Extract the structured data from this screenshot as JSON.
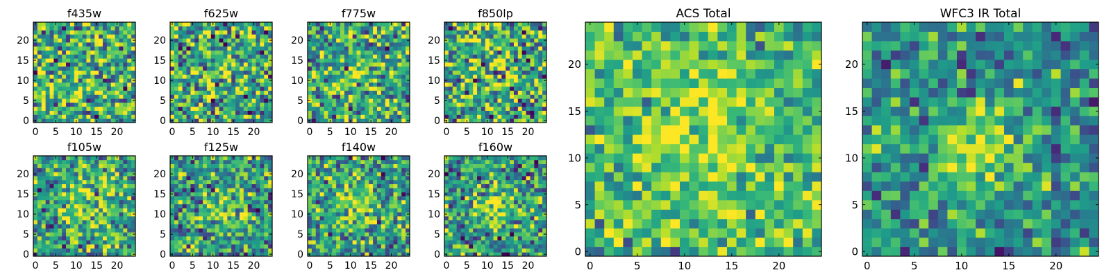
{
  "figure": {
    "background": "#ffffff",
    "colormap": {
      "name": "viridis",
      "stops": [
        "#440154",
        "#482878",
        "#3e4989",
        "#31688e",
        "#26828e",
        "#1f9e89",
        "#35b779",
        "#6ece58",
        "#b5de2b",
        "#fde725"
      ]
    }
  },
  "chart_data": [
    {
      "type": "heatmap",
      "title": "f435w",
      "grid": [
        25,
        25
      ],
      "xticks": [
        "0",
        "5",
        "10",
        "15",
        "20"
      ],
      "yticks": [
        "0",
        "5",
        "10",
        "15",
        "20"
      ],
      "xlim": [
        -0.5,
        24.5
      ],
      "ylim": [
        -0.5,
        24.5
      ],
      "value_range": [
        0,
        1
      ],
      "source": {
        "kind": "noise",
        "seed": 11,
        "noise": 0.55,
        "peak_x": 12,
        "peak_y": 12,
        "peak_amp": 0.05,
        "sigma": 4,
        "base": 0.62
      }
    },
    {
      "type": "heatmap",
      "title": "f625w",
      "grid": [
        25,
        25
      ],
      "xticks": [
        "0",
        "5",
        "10",
        "15",
        "20"
      ],
      "yticks": [
        "0",
        "5",
        "10",
        "15",
        "20"
      ],
      "xlim": [
        -0.5,
        24.5
      ],
      "ylim": [
        -0.5,
        24.5
      ],
      "value_range": [
        0,
        1
      ],
      "source": {
        "kind": "noise",
        "seed": 23,
        "noise": 0.55,
        "peak_x": 12,
        "peak_y": 13,
        "peak_amp": 0.1,
        "sigma": 3,
        "base": 0.6
      }
    },
    {
      "type": "heatmap",
      "title": "f775w",
      "grid": [
        25,
        25
      ],
      "xticks": [
        "0",
        "5",
        "10",
        "15",
        "20"
      ],
      "yticks": [
        "0",
        "5",
        "10",
        "15",
        "20"
      ],
      "xlim": [
        -0.5,
        24.5
      ],
      "ylim": [
        -0.5,
        24.5
      ],
      "value_range": [
        0,
        1
      ],
      "source": {
        "kind": "noise",
        "seed": 37,
        "noise": 0.5,
        "peak_x": 12,
        "peak_y": 12,
        "peak_amp": 0.15,
        "sigma": 3,
        "base": 0.6
      }
    },
    {
      "type": "heatmap",
      "title": "f850lp",
      "grid": [
        25,
        25
      ],
      "xticks": [
        "0",
        "5",
        "10",
        "15",
        "20"
      ],
      "yticks": [
        "0",
        "5",
        "10",
        "15",
        "20"
      ],
      "xlim": [
        -0.5,
        24.5
      ],
      "ylim": [
        -0.5,
        24.5
      ],
      "value_range": [
        0,
        1
      ],
      "source": {
        "kind": "noise",
        "seed": 41,
        "noise": 0.55,
        "peak_x": 12,
        "peak_y": 12,
        "peak_amp": 0.12,
        "sigma": 3,
        "base": 0.6
      }
    },
    {
      "type": "heatmap",
      "title": "f105w",
      "grid": [
        25,
        25
      ],
      "xticks": [
        "0",
        "5",
        "10",
        "15",
        "20"
      ],
      "yticks": [
        "0",
        "5",
        "10",
        "15",
        "20"
      ],
      "xlim": [
        -0.5,
        24.5
      ],
      "ylim": [
        -0.5,
        24.5
      ],
      "value_range": [
        0,
        1
      ],
      "source": {
        "kind": "noise",
        "seed": 53,
        "noise": 0.45,
        "peak_x": 12,
        "peak_y": 12,
        "peak_amp": 0.25,
        "sigma": 4,
        "base": 0.58
      }
    },
    {
      "type": "heatmap",
      "title": "f125w",
      "grid": [
        25,
        25
      ],
      "xticks": [
        "0",
        "5",
        "10",
        "15",
        "20"
      ],
      "yticks": [
        "0",
        "5",
        "10",
        "15",
        "20"
      ],
      "xlim": [
        -0.5,
        24.5
      ],
      "ylim": [
        -0.5,
        24.5
      ],
      "value_range": [
        0,
        1
      ],
      "source": {
        "kind": "noise",
        "seed": 67,
        "noise": 0.45,
        "peak_x": 12,
        "peak_y": 12,
        "peak_amp": 0.3,
        "sigma": 3,
        "base": 0.56
      }
    },
    {
      "type": "heatmap",
      "title": "f140w",
      "grid": [
        25,
        25
      ],
      "xticks": [
        "0",
        "5",
        "10",
        "15",
        "20"
      ],
      "yticks": [
        "0",
        "5",
        "10",
        "15",
        "20"
      ],
      "xlim": [
        -0.5,
        24.5
      ],
      "ylim": [
        -0.5,
        24.5
      ],
      "value_range": [
        0,
        1
      ],
      "source": {
        "kind": "noise",
        "seed": 79,
        "noise": 0.45,
        "peak_x": 11,
        "peak_y": 12,
        "peak_amp": 0.25,
        "sigma": 3.5,
        "base": 0.56
      }
    },
    {
      "type": "heatmap",
      "title": "f160w",
      "grid": [
        25,
        25
      ],
      "xticks": [
        "0",
        "5",
        "10",
        "15",
        "20"
      ],
      "yticks": [
        "0",
        "5",
        "10",
        "15",
        "20"
      ],
      "xlim": [
        -0.5,
        24.5
      ],
      "ylim": [
        -0.5,
        24.5
      ],
      "value_range": [
        0,
        1
      ],
      "source": {
        "kind": "noise",
        "seed": 83,
        "noise": 0.45,
        "peak_x": 12,
        "peak_y": 12,
        "peak_amp": 0.35,
        "sigma": 3,
        "base": 0.55
      }
    },
    {
      "type": "heatmap",
      "title": "ACS Total",
      "grid": [
        25,
        25
      ],
      "xticks": [
        "0",
        "5",
        "10",
        "15",
        "20"
      ],
      "yticks": [
        "0",
        "5",
        "10",
        "15",
        "20"
      ],
      "xlim": [
        -0.5,
        24.5
      ],
      "ylim": [
        -0.5,
        24.5
      ],
      "value_range": [
        0,
        1
      ],
      "source": {
        "kind": "noise",
        "seed": 97,
        "noise": 0.35,
        "peak_x": 12,
        "peak_y": 12,
        "peak_amp": 0.2,
        "sigma": 4,
        "base": 0.68
      }
    },
    {
      "type": "heatmap",
      "title": "WFC3 IR Total",
      "grid": [
        25,
        25
      ],
      "xticks": [
        "0",
        "5",
        "10",
        "15",
        "20"
      ],
      "yticks": [
        "0",
        "5",
        "10",
        "15",
        "20"
      ],
      "xlim": [
        -0.5,
        24.5
      ],
      "ylim": [
        -0.5,
        24.5
      ],
      "value_range": [
        0,
        1
      ],
      "source": {
        "kind": "noise",
        "seed": 101,
        "noise": 0.35,
        "peak_x": 12,
        "peak_y": 11,
        "peak_amp": 0.4,
        "sigma": 3.5,
        "base": 0.5
      }
    }
  ]
}
